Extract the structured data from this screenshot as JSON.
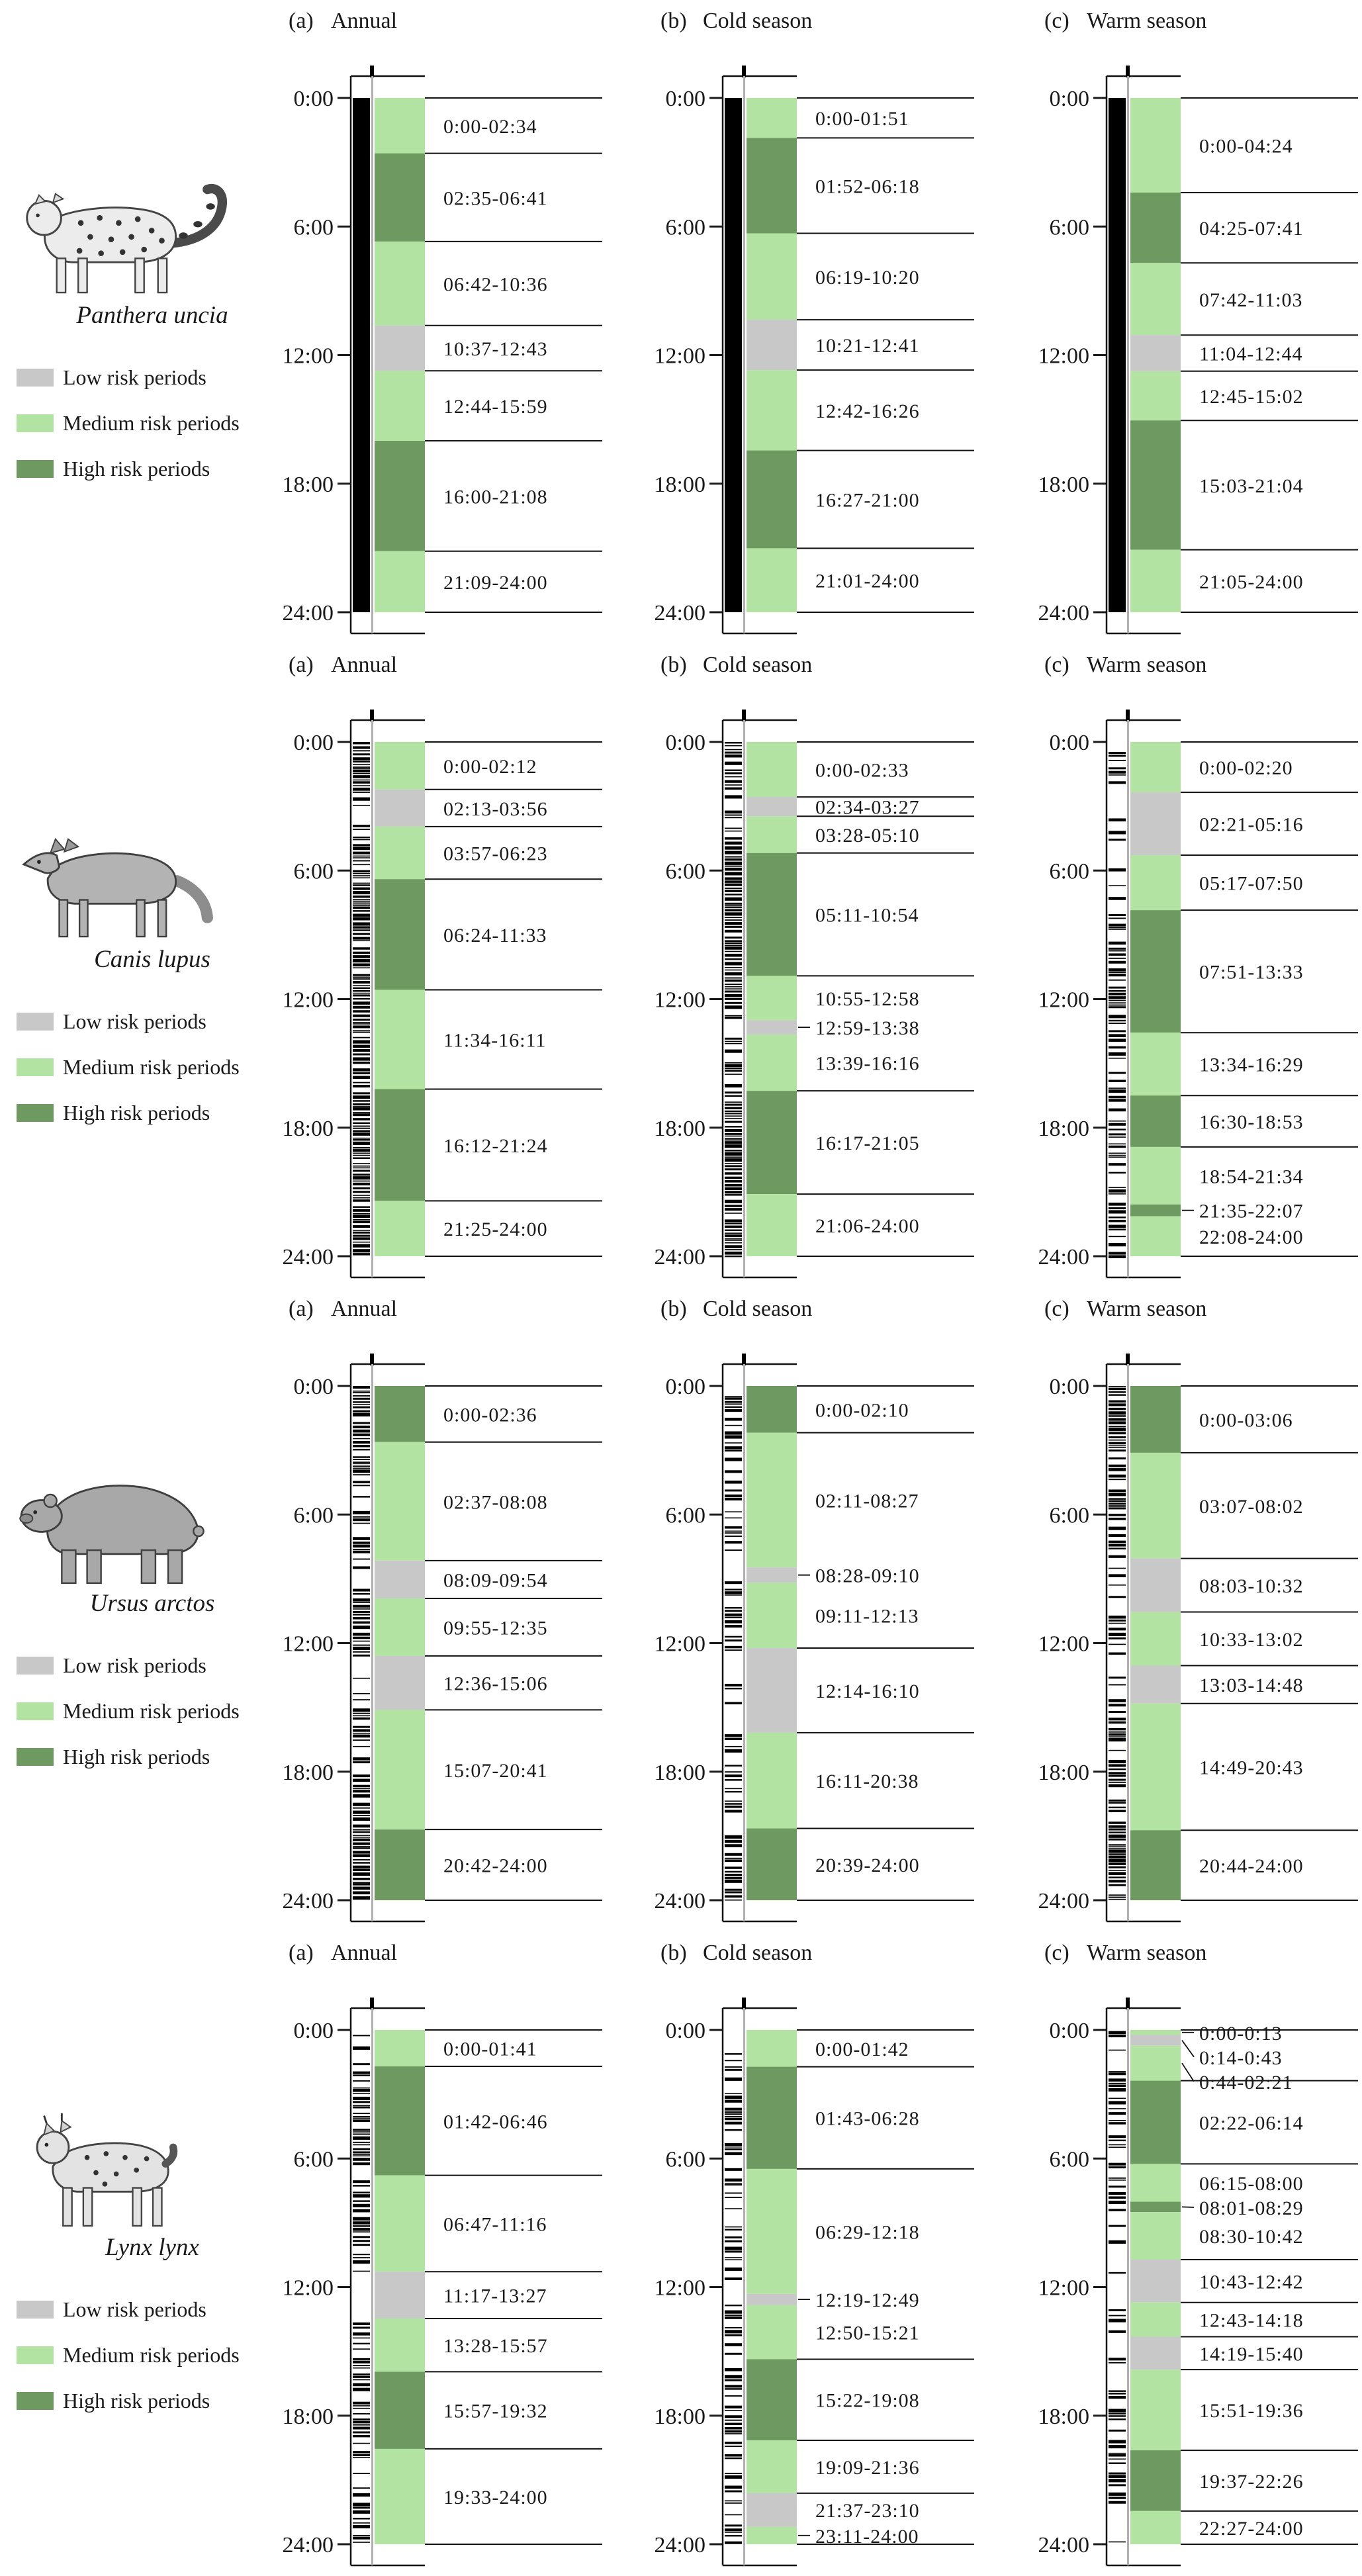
{
  "axis": {
    "ticks": [
      "0:00",
      "6:00",
      "12:00",
      "18:00",
      "24:00"
    ]
  },
  "legend": {
    "items": [
      {
        "key": "low",
        "label": "Low risk periods"
      },
      {
        "key": "medium",
        "label": "Medium risk periods"
      },
      {
        "key": "high",
        "label": "High risk periods"
      }
    ]
  },
  "colors": {
    "low": "#c8c8c8",
    "medium": "#b2e3a2",
    "high": "#6e9a62",
    "rug": "#000000",
    "gray_divider": "#b0b0b0",
    "line": "#1a1a1a"
  },
  "chart_data": {
    "type": "timeline",
    "unit": "time-of-day",
    "range": [
      "0:00",
      "24:00"
    ],
    "species": [
      {
        "name": "Panthera uncia",
        "icon": "snow-leopard",
        "panels": [
          {
            "label": "(a)",
            "season": "Annual",
            "rug_style": "solid",
            "rug_density": 1.0,
            "bands": [
              {
                "range": "0:00-02:34",
                "risk": "medium"
              },
              {
                "range": "02:35-06:41",
                "risk": "high"
              },
              {
                "range": "06:42-10:36",
                "risk": "medium"
              },
              {
                "range": "10:37-12:43",
                "risk": "low"
              },
              {
                "range": "12:44-15:59",
                "risk": "medium"
              },
              {
                "range": "16:00-21:08",
                "risk": "high"
              },
              {
                "range": "21:09-24:00",
                "risk": "medium"
              }
            ]
          },
          {
            "label": "(b)",
            "season": "Cold season",
            "rug_style": "solid",
            "rug_density": 1.0,
            "bands": [
              {
                "range": "0:00-01:51",
                "risk": "medium"
              },
              {
                "range": "01:52-06:18",
                "risk": "high"
              },
              {
                "range": "06:19-10:20",
                "risk": "medium"
              },
              {
                "range": "10:21-12:41",
                "risk": "low"
              },
              {
                "range": "12:42-16:26",
                "risk": "medium"
              },
              {
                "range": "16:27-21:00",
                "risk": "high"
              },
              {
                "range": "21:01-24:00",
                "risk": "medium"
              }
            ]
          },
          {
            "label": "(c)",
            "season": "Warm season",
            "rug_style": "solid",
            "rug_density": 1.0,
            "bands": [
              {
                "range": "0:00-04:24",
                "risk": "medium"
              },
              {
                "range": "04:25-07:41",
                "risk": "high"
              },
              {
                "range": "07:42-11:03",
                "risk": "medium"
              },
              {
                "range": "11:04-12:44",
                "risk": "low"
              },
              {
                "range": "12:45-15:02",
                "risk": "medium"
              },
              {
                "range": "15:03-21:04",
                "risk": "high"
              },
              {
                "range": "21:05-24:00",
                "risk": "medium"
              }
            ]
          }
        ]
      },
      {
        "name": "Canis lupus",
        "icon": "wolf",
        "panels": [
          {
            "label": "(a)",
            "season": "Annual",
            "rug_style": "ticks",
            "rug_density": 0.92,
            "bands": [
              {
                "range": "0:00-02:12",
                "risk": "medium"
              },
              {
                "range": "02:13-03:56",
                "risk": "low"
              },
              {
                "range": "03:57-06:23",
                "risk": "medium"
              },
              {
                "range": "06:24-11:33",
                "risk": "high"
              },
              {
                "range": "11:34-16:11",
                "risk": "medium"
              },
              {
                "range": "16:12-21:24",
                "risk": "high"
              },
              {
                "range": "21:25-24:00",
                "risk": "medium"
              }
            ]
          },
          {
            "label": "(b)",
            "season": "Cold season",
            "rug_style": "ticks",
            "rug_density": 0.8,
            "bands": [
              {
                "range": "0:00-02:33",
                "risk": "medium"
              },
              {
                "range": "02:34-03:27",
                "risk": "low"
              },
              {
                "range": "03:28-05:10",
                "risk": "medium"
              },
              {
                "range": "05:11-10:54",
                "risk": "high"
              },
              {
                "range": "10:55-12:58",
                "risk": "medium"
              },
              {
                "range": "12:59-13:38",
                "risk": "low"
              },
              {
                "range": "13:39-16:16",
                "risk": "medium"
              },
              {
                "range": "16:17-21:05",
                "risk": "high"
              },
              {
                "range": "21:06-24:00",
                "risk": "medium"
              }
            ]
          },
          {
            "label": "(c)",
            "season": "Warm season",
            "rug_style": "ticks",
            "rug_density": 0.42,
            "bands": [
              {
                "range": "0:00-02:20",
                "risk": "medium"
              },
              {
                "range": "02:21-05:16",
                "risk": "low"
              },
              {
                "range": "05:17-07:50",
                "risk": "medium"
              },
              {
                "range": "07:51-13:33",
                "risk": "high"
              },
              {
                "range": "13:34-16:29",
                "risk": "medium"
              },
              {
                "range": "16:30-18:53",
                "risk": "high"
              },
              {
                "range": "18:54-21:34",
                "risk": "medium"
              },
              {
                "range": "21:35-22:07",
                "risk": "high"
              },
              {
                "range": "22:08-24:00",
                "risk": "medium"
              }
            ]
          }
        ]
      },
      {
        "name": "Ursus arctos",
        "icon": "bear",
        "panels": [
          {
            "label": "(a)",
            "season": "Annual",
            "rug_style": "ticks",
            "rug_density": 0.7,
            "bands": [
              {
                "range": "0:00-02:36",
                "risk": "high"
              },
              {
                "range": "02:37-08:08",
                "risk": "medium"
              },
              {
                "range": "08:09-09:54",
                "risk": "low"
              },
              {
                "range": "09:55-12:35",
                "risk": "medium"
              },
              {
                "range": "12:36-15:06",
                "risk": "low"
              },
              {
                "range": "15:07-20:41",
                "risk": "medium"
              },
              {
                "range": "20:42-24:00",
                "risk": "high"
              }
            ]
          },
          {
            "label": "(b)",
            "season": "Cold season",
            "rug_style": "ticks",
            "rug_density": 0.45,
            "bands": [
              {
                "range": "0:00-02:10",
                "risk": "high"
              },
              {
                "range": "02:11-08:27",
                "risk": "medium"
              },
              {
                "range": "08:28-09:10",
                "risk": "low"
              },
              {
                "range": "09:11-12:13",
                "risk": "medium"
              },
              {
                "range": "12:14-16:10",
                "risk": "low"
              },
              {
                "range": "16:11-20:38",
                "risk": "medium"
              },
              {
                "range": "20:39-24:00",
                "risk": "high"
              }
            ]
          },
          {
            "label": "(c)",
            "season": "Warm season",
            "rug_style": "ticks",
            "rug_density": 0.6,
            "bands": [
              {
                "range": "0:00-03:06",
                "risk": "high"
              },
              {
                "range": "03:07-08:02",
                "risk": "medium"
              },
              {
                "range": "08:03-10:32",
                "risk": "low"
              },
              {
                "range": "10:33-13:02",
                "risk": "medium"
              },
              {
                "range": "13:03-14:48",
                "risk": "low"
              },
              {
                "range": "14:49-20:43",
                "risk": "medium"
              },
              {
                "range": "20:44-24:00",
                "risk": "high"
              }
            ]
          }
        ]
      },
      {
        "name": "Lynx lynx",
        "icon": "lynx",
        "panels": [
          {
            "label": "(a)",
            "season": "Annual",
            "rug_style": "ticks",
            "rug_density": 0.5,
            "bands": [
              {
                "range": "0:00-01:41",
                "risk": "medium"
              },
              {
                "range": "01:42-06:46",
                "risk": "high"
              },
              {
                "range": "06:47-11:16",
                "risk": "medium"
              },
              {
                "range": "11:17-13:27",
                "risk": "low"
              },
              {
                "range": "13:28-15:57",
                "risk": "medium"
              },
              {
                "range": "15:57-19:32",
                "risk": "high"
              },
              {
                "range": "19:33-24:00",
                "risk": "medium"
              }
            ]
          },
          {
            "label": "(b)",
            "season": "Cold season",
            "rug_style": "ticks",
            "rug_density": 0.45,
            "bands": [
              {
                "range": "0:00-01:42",
                "risk": "medium"
              },
              {
                "range": "01:43-06:28",
                "risk": "high"
              },
              {
                "range": "06:29-12:18",
                "risk": "medium"
              },
              {
                "range": "12:19-12:49",
                "risk": "low"
              },
              {
                "range": "12:50-15:21",
                "risk": "medium"
              },
              {
                "range": "15:22-19:08",
                "risk": "high"
              },
              {
                "range": "19:09-21:36",
                "risk": "medium"
              },
              {
                "range": "21:37-23:10",
                "risk": "low"
              },
              {
                "range": "23:11-24:00",
                "risk": "medium"
              }
            ]
          },
          {
            "label": "(c)",
            "season": "Warm season",
            "rug_style": "ticks",
            "rug_density": 0.33,
            "bands": [
              {
                "range": "0:00-0:13",
                "risk": "medium"
              },
              {
                "range": "0:14-0:43",
                "risk": "low"
              },
              {
                "range": "0:44-02:21",
                "risk": "medium"
              },
              {
                "range": "02:22-06:14",
                "risk": "high"
              },
              {
                "range": "06:15-08:00",
                "risk": "medium"
              },
              {
                "range": "08:01-08:29",
                "risk": "high"
              },
              {
                "range": "08:30-10:42",
                "risk": "medium"
              },
              {
                "range": "10:43-12:42",
                "risk": "low"
              },
              {
                "range": "12:43-14:18",
                "risk": "medium"
              },
              {
                "range": "14:19-15:40",
                "risk": "low"
              },
              {
                "range": "15:51-19:36",
                "risk": "medium"
              },
              {
                "range": "19:37-22:26",
                "risk": "high"
              },
              {
                "range": "22:27-24:00",
                "risk": "medium"
              }
            ]
          }
        ]
      }
    ]
  }
}
